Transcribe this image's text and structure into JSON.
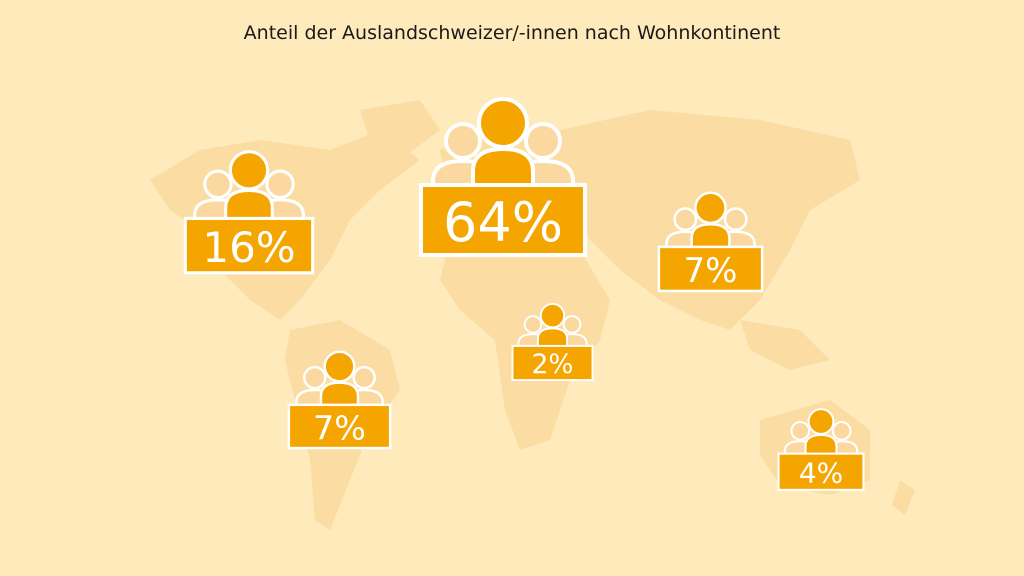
{
  "title": "Anteil der Auslandschweizer/-innen nach Wohnkontinent",
  "colors": {
    "background": "#FEEABA",
    "map": "#FBDCA2",
    "accent": "#F5A500",
    "person_secondary": "#FAD8A0",
    "outline": "#FFFFFF"
  },
  "icons": {
    "group": "people-group-icon"
  },
  "chart_data": {
    "type": "pictogram-map",
    "title": "Anteil der Auslandschweizer/-innen nach Wohnkontinent",
    "unit": "%",
    "values": [
      16,
      64,
      7,
      2,
      7,
      4
    ],
    "labels": [
      "16%",
      "64%",
      "7%",
      "2%",
      "7%",
      "4%"
    ]
  }
}
